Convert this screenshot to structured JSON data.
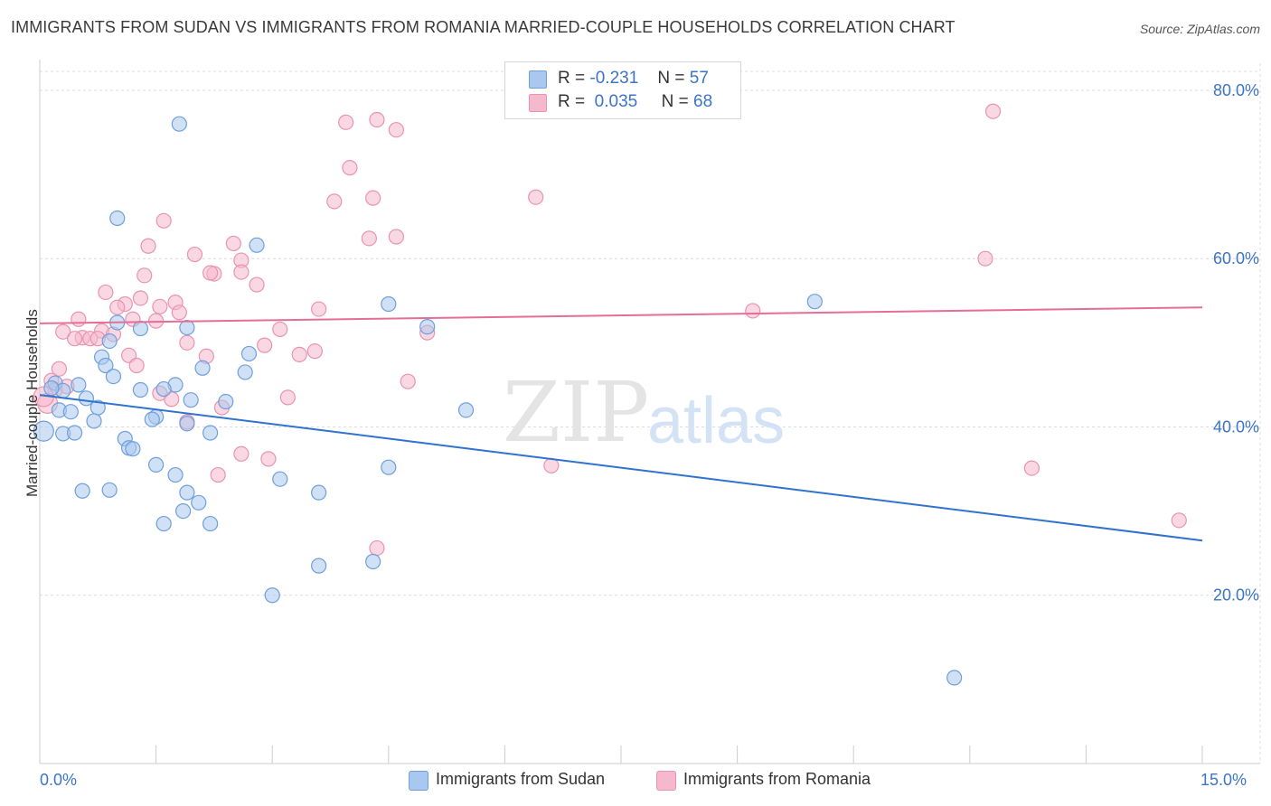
{
  "title": "IMMIGRANTS FROM SUDAN VS IMMIGRANTS FROM ROMANIA MARRIED-COUPLE HOUSEHOLDS CORRELATION CHART",
  "source": "Source: ZipAtlas.com",
  "watermark": {
    "zip": "ZIP",
    "atlas": "atlas"
  },
  "legend": {
    "sudan": {
      "r_label": "R =",
      "r_value": "-0.231",
      "n_label": "N =",
      "n_value": "57"
    },
    "romania": {
      "r_label": "R =",
      "r_value": "0.035",
      "n_label": "N =",
      "n_value": "68"
    }
  },
  "bottom_legend": {
    "sudan": "Immigrants from Sudan",
    "romania": "Immigrants from Romania"
  },
  "x_axis": {
    "min_label": "0.0%",
    "max_label": "15.0%"
  },
  "colors": {
    "sudan_fill": "#a9c8ef",
    "sudan_stroke": "#6f9fdc",
    "sudan_line": "#2f72d0",
    "romania_fill": "#f5b8cc",
    "romania_stroke": "#e993b1",
    "romania_line": "#e56d96",
    "grid": "#dcdcdc",
    "tick_label": "#3b74c8"
  },
  "chart_data": {
    "type": "scatter",
    "title": "IMMIGRANTS FROM SUDAN VS IMMIGRANTS FROM ROMANIA MARRIED-COUPLE HOUSEHOLDS CORRELATION CHART",
    "xlabel": "",
    "ylabel": "Married-couple Households",
    "xlim": [
      0,
      15
    ],
    "ylim": [
      0,
      83
    ],
    "y_ticks": [
      20,
      40,
      60,
      80
    ],
    "y_tick_labels": [
      "20.0%",
      "40.0%",
      "60.0%",
      "80.0%"
    ],
    "grid": true,
    "series": [
      {
        "name": "Immigrants from Sudan",
        "r": -0.231,
        "n": 57,
        "trend": {
          "x": [
            0,
            15
          ],
          "y": [
            43.8,
            26.5
          ]
        },
        "points": [
          [
            1.8,
            76.0
          ],
          [
            1.0,
            64.8
          ],
          [
            2.8,
            61.6
          ],
          [
            4.5,
            54.6
          ],
          [
            10.0,
            54.9
          ],
          [
            1.0,
            52.4
          ],
          [
            1.3,
            51.7
          ],
          [
            1.9,
            51.8
          ],
          [
            5.0,
            51.9
          ],
          [
            0.9,
            50.2
          ],
          [
            0.8,
            48.3
          ],
          [
            2.7,
            48.7
          ],
          [
            0.85,
            47.3
          ],
          [
            2.1,
            47.0
          ],
          [
            2.65,
            46.5
          ],
          [
            0.95,
            46.0
          ],
          [
            0.2,
            45.2
          ],
          [
            0.5,
            45.0
          ],
          [
            1.75,
            45.0
          ],
          [
            0.3,
            44.3
          ],
          [
            1.3,
            44.4
          ],
          [
            1.6,
            44.5
          ],
          [
            0.6,
            43.4
          ],
          [
            1.95,
            43.2
          ],
          [
            0.75,
            42.3
          ],
          [
            0.25,
            42.0
          ],
          [
            0.4,
            41.8
          ],
          [
            5.5,
            42.0
          ],
          [
            1.5,
            41.2
          ],
          [
            0.7,
            40.7
          ],
          [
            1.9,
            40.4
          ],
          [
            0.3,
            39.2
          ],
          [
            0.45,
            39.3
          ],
          [
            2.2,
            39.3
          ],
          [
            0.05,
            39.5
          ],
          [
            1.1,
            38.6
          ],
          [
            1.15,
            37.5
          ],
          [
            1.2,
            37.4
          ],
          [
            1.5,
            35.5
          ],
          [
            4.5,
            35.2
          ],
          [
            1.75,
            34.3
          ],
          [
            3.1,
            33.8
          ],
          [
            0.55,
            32.4
          ],
          [
            0.9,
            32.5
          ],
          [
            1.9,
            32.2
          ],
          [
            3.6,
            32.2
          ],
          [
            2.05,
            31.0
          ],
          [
            1.85,
            30.0
          ],
          [
            1.6,
            28.5
          ],
          [
            2.2,
            28.5
          ],
          [
            4.3,
            24.0
          ],
          [
            3.6,
            23.5
          ],
          [
            3.0,
            20.0
          ],
          [
            11.8,
            10.2
          ],
          [
            0.15,
            44.6
          ],
          [
            1.45,
            40.9
          ],
          [
            2.4,
            43.0
          ]
        ]
      },
      {
        "name": "Immigrants from Romania",
        "r": 0.035,
        "n": 68,
        "trend": {
          "x": [
            0,
            15
          ],
          "y": [
            52.3,
            54.2
          ]
        },
        "points": [
          [
            12.3,
            77.5
          ],
          [
            4.35,
            76.5
          ],
          [
            3.95,
            76.2
          ],
          [
            4.6,
            75.3
          ],
          [
            4.0,
            70.8
          ],
          [
            3.8,
            66.8
          ],
          [
            4.3,
            67.2
          ],
          [
            6.4,
            67.3
          ],
          [
            1.6,
            64.5
          ],
          [
            4.6,
            62.6
          ],
          [
            4.25,
            62.4
          ],
          [
            2.5,
            61.8
          ],
          [
            1.4,
            61.5
          ],
          [
            2.0,
            60.5
          ],
          [
            2.6,
            59.8
          ],
          [
            12.2,
            60.0
          ],
          [
            2.6,
            58.4
          ],
          [
            2.25,
            58.2
          ],
          [
            2.2,
            58.3
          ],
          [
            1.35,
            58.0
          ],
          [
            2.8,
            56.9
          ],
          [
            0.85,
            56.0
          ],
          [
            1.3,
            55.3
          ],
          [
            1.1,
            54.6
          ],
          [
            1.75,
            54.8
          ],
          [
            1.55,
            54.3
          ],
          [
            1.0,
            54.2
          ],
          [
            3.6,
            54.0
          ],
          [
            9.2,
            53.8
          ],
          [
            1.8,
            53.6
          ],
          [
            0.5,
            52.8
          ],
          [
            1.2,
            52.8
          ],
          [
            1.5,
            52.6
          ],
          [
            0.8,
            51.4
          ],
          [
            0.3,
            51.3
          ],
          [
            3.1,
            51.6
          ],
          [
            5.0,
            51.2
          ],
          [
            0.55,
            50.6
          ],
          [
            0.45,
            50.5
          ],
          [
            0.65,
            50.5
          ],
          [
            0.95,
            51.0
          ],
          [
            0.75,
            50.5
          ],
          [
            1.9,
            50.0
          ],
          [
            2.9,
            49.7
          ],
          [
            3.55,
            49.0
          ],
          [
            1.15,
            48.5
          ],
          [
            3.35,
            48.6
          ],
          [
            2.15,
            48.4
          ],
          [
            1.25,
            47.3
          ],
          [
            0.25,
            46.9
          ],
          [
            0.15,
            45.5
          ],
          [
            4.75,
            45.4
          ],
          [
            0.2,
            44.4
          ],
          [
            1.55,
            44.0
          ],
          [
            3.2,
            43.5
          ],
          [
            1.7,
            43.3
          ],
          [
            0.1,
            42.8
          ],
          [
            2.35,
            42.3
          ],
          [
            1.9,
            40.6
          ],
          [
            2.6,
            36.8
          ],
          [
            2.95,
            36.2
          ],
          [
            6.6,
            35.4
          ],
          [
            12.8,
            35.1
          ],
          [
            2.3,
            34.3
          ],
          [
            14.7,
            28.9
          ],
          [
            4.35,
            25.6
          ],
          [
            0.35,
            44.8
          ],
          [
            0.05,
            43.6
          ]
        ]
      }
    ]
  }
}
